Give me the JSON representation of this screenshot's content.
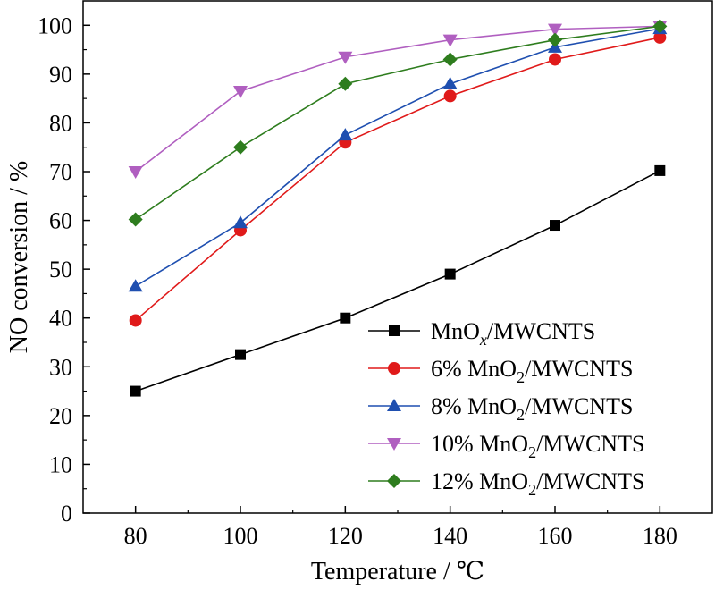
{
  "chart_data": {
    "type": "line",
    "xlabel": "Temperature / ℃",
    "ylabel": "NO conversion / %",
    "x": [
      80,
      100,
      120,
      140,
      160,
      180
    ],
    "xlim": [
      70,
      190
    ],
    "ylim": [
      0,
      105
    ],
    "xticks": [
      80,
      100,
      120,
      140,
      160,
      180
    ],
    "yticks": [
      0,
      10,
      20,
      30,
      40,
      50,
      60,
      70,
      80,
      90,
      100
    ],
    "grid": false,
    "legend_position": "center-right",
    "series": [
      {
        "name_parts": [
          {
            "t": "MnO"
          },
          {
            "t": "x",
            "sub": true,
            "italic": true
          },
          {
            "t": "/MWCNTS"
          }
        ],
        "color": "#000000",
        "marker": "square",
        "values": [
          25.0,
          32.5,
          40.0,
          49.0,
          59.0,
          70.2
        ]
      },
      {
        "name_parts": [
          {
            "t": "6% MnO"
          },
          {
            "t": "2",
            "sub": true
          },
          {
            "t": "/MWCNTS"
          }
        ],
        "color": "#e01a1a",
        "marker": "circle",
        "values": [
          39.5,
          58.0,
          76.0,
          85.5,
          93.0,
          97.5
        ]
      },
      {
        "name_parts": [
          {
            "t": "8% MnO"
          },
          {
            "t": "2",
            "sub": true
          },
          {
            "t": "/MWCNTS"
          }
        ],
        "color": "#1f4fb0",
        "marker": "triangle-up",
        "values": [
          46.5,
          59.5,
          77.5,
          88.0,
          95.5,
          99.3
        ]
      },
      {
        "name_parts": [
          {
            "t": "10% MnO"
          },
          {
            "t": "2",
            "sub": true
          },
          {
            "t": "/MWCNTS"
          }
        ],
        "color": "#b05fc0",
        "marker": "triangle-down",
        "values": [
          70.0,
          86.5,
          93.5,
          97.0,
          99.2,
          99.8
        ]
      },
      {
        "name_parts": [
          {
            "t": "12% MnO"
          },
          {
            "t": "2",
            "sub": true
          },
          {
            "t": "/MWCNTS"
          }
        ],
        "color": "#2e7d1e",
        "marker": "diamond",
        "values": [
          60.2,
          75.0,
          88.0,
          93.0,
          97.0,
          99.8
        ]
      }
    ]
  }
}
